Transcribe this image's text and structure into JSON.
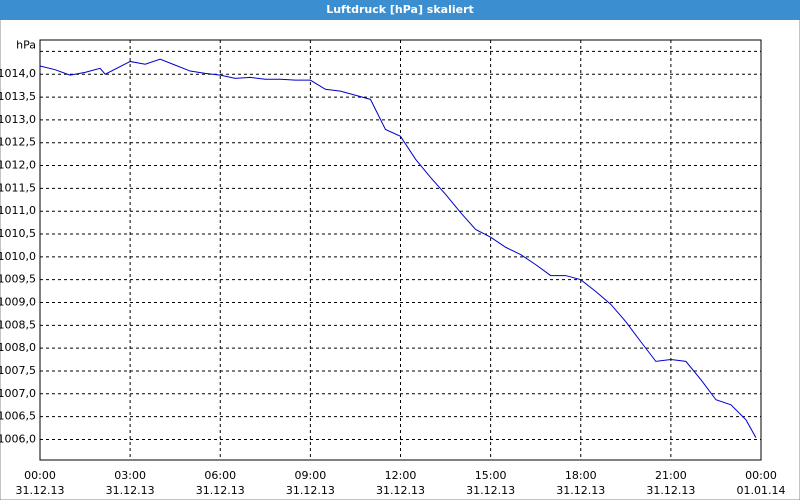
{
  "chart_data": {
    "type": "line",
    "title": "Luftdruck [hPa] skaliert",
    "x": [
      0,
      0.5,
      1,
      1.5,
      2,
      2.17,
      3,
      3.5,
      4,
      4.5,
      5,
      5.5,
      6,
      6.5,
      7,
      7.5,
      8,
      8.5,
      9,
      9.5,
      10,
      10.5,
      11,
      11.5,
      12,
      12.5,
      13,
      13.5,
      14,
      14.5,
      15,
      15.5,
      16,
      16.5,
      17,
      17.5,
      18,
      18.5,
      19,
      19.5,
      20,
      20.5,
      21,
      21.5,
      22,
      22.5,
      23,
      23.5,
      23.83
    ],
    "series": [
      {
        "color": "#0000cc",
        "values": [
          1014.18,
          1014.1,
          1013.98,
          1014.04,
          1014.13,
          1014.0,
          1014.28,
          1014.22,
          1014.33,
          1014.2,
          1014.07,
          1014.02,
          1013.98,
          1013.91,
          1013.93,
          1013.89,
          1013.89,
          1013.87,
          1013.87,
          1013.67,
          1013.63,
          1013.54,
          1013.45,
          1012.79,
          1012.64,
          1012.14,
          1011.74,
          1011.37,
          1010.97,
          1010.6,
          1010.43,
          1010.21,
          1010.05,
          1009.83,
          1009.59,
          1009.59,
          1009.5,
          1009.24,
          1008.96,
          1008.58,
          1008.14,
          1007.71,
          1007.75,
          1007.71,
          1007.31,
          1006.87,
          1006.76,
          1006.43,
          1006.04
        ]
      }
    ],
    "xlim": [
      0,
      24
    ],
    "xticks": [
      {
        "value": 0,
        "label": "00:00",
        "date": "31.12.13"
      },
      {
        "value": 3,
        "label": "03:00",
        "date": "31.12.13"
      },
      {
        "value": 6,
        "label": "06:00",
        "date": "31.12.13"
      },
      {
        "value": 9,
        "label": "09:00",
        "date": "31.12.13"
      },
      {
        "value": 12,
        "label": "12:00",
        "date": "31.12.13"
      },
      {
        "value": 15,
        "label": "15:00",
        "date": "31.12.13"
      },
      {
        "value": 18,
        "label": "18:00",
        "date": "31.12.13"
      },
      {
        "value": 21,
        "label": "21:00",
        "date": "31.12.13"
      },
      {
        "value": 24,
        "label": "00:00",
        "date": "01.01.14"
      }
    ],
    "ylim": [
      1005.55,
      1014.75
    ],
    "yticks": [
      {
        "value": 1006,
        "label": "1006,0"
      },
      {
        "value": 1006.5,
        "label": "1006,5"
      },
      {
        "value": 1007,
        "label": "1007,0"
      },
      {
        "value": 1007.5,
        "label": "1007,5"
      },
      {
        "value": 1008,
        "label": "1008,0"
      },
      {
        "value": 1008.5,
        "label": "1008,5"
      },
      {
        "value": 1009,
        "label": "1009,0"
      },
      {
        "value": 1009.5,
        "label": "1009,5"
      },
      {
        "value": 1010,
        "label": "1010,0"
      },
      {
        "value": 1010.5,
        "label": "1010,5"
      },
      {
        "value": 1011,
        "label": "1011,0"
      },
      {
        "value": 1011.5,
        "label": "1011,5"
      },
      {
        "value": 1012,
        "label": "1012,0"
      },
      {
        "value": 1012.5,
        "label": "1012,5"
      },
      {
        "value": 1013,
        "label": "1013,0"
      },
      {
        "value": 1013.5,
        "label": "1013,5"
      },
      {
        "value": 1014,
        "label": "1014,0"
      },
      {
        "value": 1014.5,
        "label": "hPa"
      }
    ],
    "grid": true
  }
}
